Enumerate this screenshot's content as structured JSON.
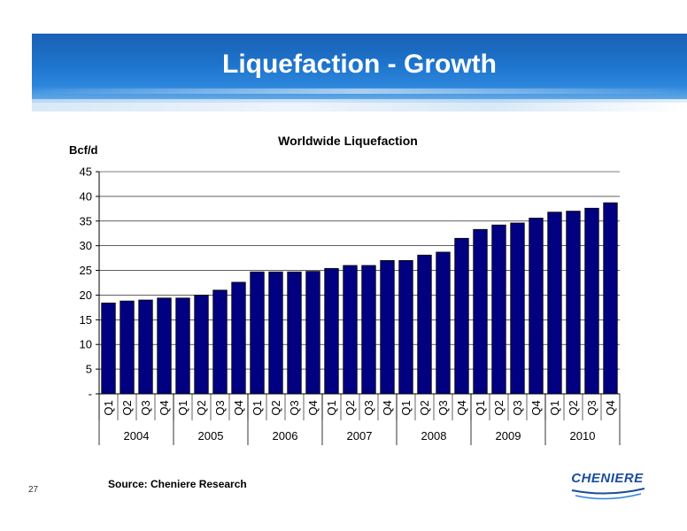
{
  "slide": {
    "title": "Liquefaction - Growth",
    "page_number": "27",
    "source": "Source: Cheniere Research",
    "logo_text": "CHENIERE"
  },
  "colors": {
    "bar_fill": "#000080",
    "banner": "#1e74cc",
    "logo": "#1a4d9a"
  },
  "chart_data": {
    "type": "bar",
    "title": "Worldwide Liquefaction",
    "ylabel": "Bcf/d",
    "xlabel": "",
    "ylim": [
      0,
      45
    ],
    "yticks": [
      0,
      5,
      10,
      15,
      20,
      25,
      30,
      35,
      40,
      45
    ],
    "ytick_labels": [
      "-",
      "5",
      "10",
      "15",
      "20",
      "25",
      "30",
      "35",
      "40",
      "45"
    ],
    "grid": true,
    "legend": "none",
    "categories": [
      "Q1",
      "Q2",
      "Q3",
      "Q4",
      "Q1",
      "Q2",
      "Q3",
      "Q4",
      "Q1",
      "Q2",
      "Q3",
      "Q4",
      "Q1",
      "Q2",
      "Q3",
      "Q4",
      "Q1",
      "Q2",
      "Q3",
      "Q4",
      "Q1",
      "Q2",
      "Q3",
      "Q4",
      "Q1",
      "Q2",
      "Q3",
      "Q4"
    ],
    "groups": [
      {
        "label": "2004",
        "count": 4
      },
      {
        "label": "2005",
        "count": 4
      },
      {
        "label": "2006",
        "count": 4
      },
      {
        "label": "2007",
        "count": 4
      },
      {
        "label": "2008",
        "count": 4
      },
      {
        "label": "2009",
        "count": 4
      },
      {
        "label": "2010",
        "count": 4
      }
    ],
    "values": [
      18.4,
      18.8,
      19.0,
      19.4,
      19.4,
      20.0,
      21.0,
      22.6,
      24.7,
      24.7,
      24.7,
      24.8,
      25.4,
      26.0,
      26.0,
      27.0,
      27.0,
      28.1,
      28.7,
      31.5,
      33.3,
      34.2,
      34.6,
      35.6,
      36.8,
      37.0,
      37.6,
      38.7
    ]
  }
}
